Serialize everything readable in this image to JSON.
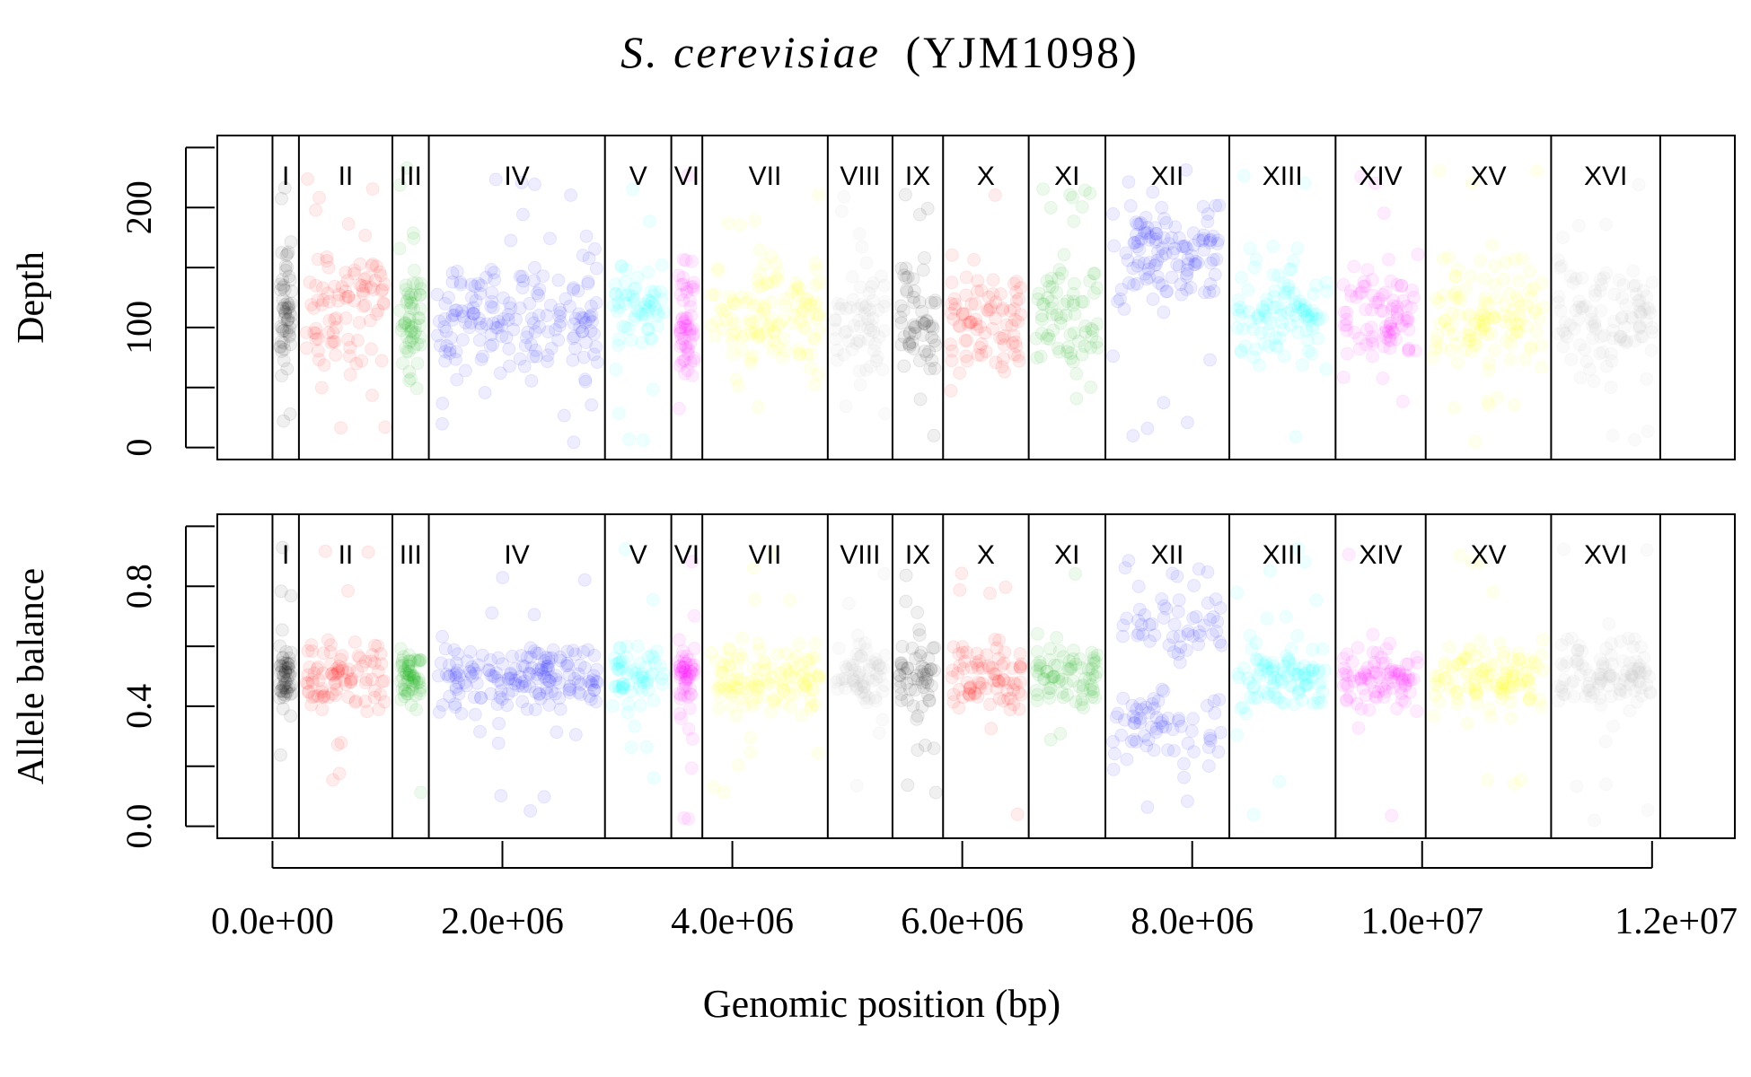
{
  "chart_data": {
    "type": "scatter",
    "title_italic": "S. cerevisiae",
    "title_strain": "(YJM1098)",
    "xlabel": "Genomic position (bp)",
    "x_ticks": [
      0,
      2000000,
      4000000,
      6000000,
      8000000,
      10000000,
      12000000
    ],
    "x_tick_labels": [
      "0.0e+00",
      "2.0e+06",
      "4.0e+06",
      "6.0e+06",
      "8.0e+06",
      "1.0e+07",
      "1.2e+07"
    ],
    "xlim": [
      -480000,
      12720000
    ],
    "chromosomes": [
      {
        "name": "I",
        "start": 0,
        "end": 230000,
        "color": "#000000"
      },
      {
        "name": "II",
        "start": 230000,
        "end": 1043000,
        "color": "#ff0000"
      },
      {
        "name": "III",
        "start": 1043000,
        "end": 1360000,
        "color": "#00b000"
      },
      {
        "name": "IV",
        "start": 1360000,
        "end": 2892000,
        "color": "#0000ff"
      },
      {
        "name": "V",
        "start": 2892000,
        "end": 3469000,
        "color": "#00ffff"
      },
      {
        "name": "VI",
        "start": 3469000,
        "end": 3739000,
        "color": "#ff00ff"
      },
      {
        "name": "VII",
        "start": 3739000,
        "end": 4830000,
        "color": "#ffff00"
      },
      {
        "name": "VIII",
        "start": 4830000,
        "end": 5393000,
        "color": "#bebebe"
      },
      {
        "name": "IX",
        "start": 5393000,
        "end": 5833000,
        "color": "#000000"
      },
      {
        "name": "X",
        "start": 5833000,
        "end": 6578000,
        "color": "#ff0000"
      },
      {
        "name": "XI",
        "start": 6578000,
        "end": 7245000,
        "color": "#00b000"
      },
      {
        "name": "XII",
        "start": 7245000,
        "end": 8323000,
        "color": "#0000ff"
      },
      {
        "name": "XIII",
        "start": 8323000,
        "end": 9247000,
        "color": "#00ffff"
      },
      {
        "name": "XIV",
        "start": 9247000,
        "end": 10031000,
        "color": "#ff00ff"
      },
      {
        "name": "XV",
        "start": 10031000,
        "end": 11122000,
        "color": "#ffff00"
      },
      {
        "name": "XVI",
        "start": 11122000,
        "end": 12071000,
        "color": "#bebebe"
      }
    ],
    "panels": [
      {
        "ylabel": "Depth",
        "ylim": [
          -10,
          260
        ],
        "y_ticks": [
          0,
          50,
          100,
          150,
          200,
          250
        ],
        "y_tick_labels": [
          "0",
          "",
          "100",
          "",
          "200",
          ""
        ],
        "chromosome_depth": [
          {
            "name": "I",
            "center": 115
          },
          {
            "name": "II",
            "center": 112
          },
          {
            "name": "III",
            "center": 108
          },
          {
            "name": "IV",
            "center": 108
          },
          {
            "name": "V",
            "center": 115
          },
          {
            "name": "VI",
            "center": 112
          },
          {
            "name": "VII",
            "center": 110
          },
          {
            "name": "VIII",
            "center": 105
          },
          {
            "name": "IX",
            "center": 110
          },
          {
            "name": "X",
            "center": 105
          },
          {
            "name": "XI",
            "center": 110
          },
          {
            "name": "XII",
            "center": 165
          },
          {
            "name": "XIII",
            "center": 112
          },
          {
            "name": "XIV",
            "center": 112
          },
          {
            "name": "XV",
            "center": 108
          },
          {
            "name": "XVI",
            "center": 108
          }
        ]
      },
      {
        "ylabel": "Allele balance",
        "ylim": [
          -0.04,
          1.04
        ],
        "y_ticks": [
          0.0,
          0.2,
          0.4,
          0.6,
          0.8,
          1.0
        ],
        "y_tick_labels": [
          "0.0",
          "",
          "0.4",
          "",
          "0.8",
          ""
        ],
        "chromosome_balance": [
          {
            "name": "I",
            "centers": [
              0.5
            ]
          },
          {
            "name": "II",
            "centers": [
              0.5
            ]
          },
          {
            "name": "III",
            "centers": [
              0.5
            ]
          },
          {
            "name": "IV",
            "centers": [
              0.5
            ]
          },
          {
            "name": "V",
            "centers": [
              0.5
            ]
          },
          {
            "name": "VI",
            "centers": [
              0.5
            ]
          },
          {
            "name": "VII",
            "centers": [
              0.5
            ]
          },
          {
            "name": "VIII",
            "centers": [
              0.5
            ]
          },
          {
            "name": "IX",
            "centers": [
              0.5
            ]
          },
          {
            "name": "X",
            "centers": [
              0.5
            ]
          },
          {
            "name": "XI",
            "centers": [
              0.5
            ]
          },
          {
            "name": "XII",
            "centers": [
              0.33,
              0.67
            ]
          },
          {
            "name": "XIII",
            "centers": [
              0.5
            ]
          },
          {
            "name": "XIV",
            "centers": [
              0.5
            ]
          },
          {
            "name": "XV",
            "centers": [
              0.5
            ]
          },
          {
            "name": "XVI",
            "centers": [
              0.5
            ]
          }
        ]
      }
    ]
  }
}
